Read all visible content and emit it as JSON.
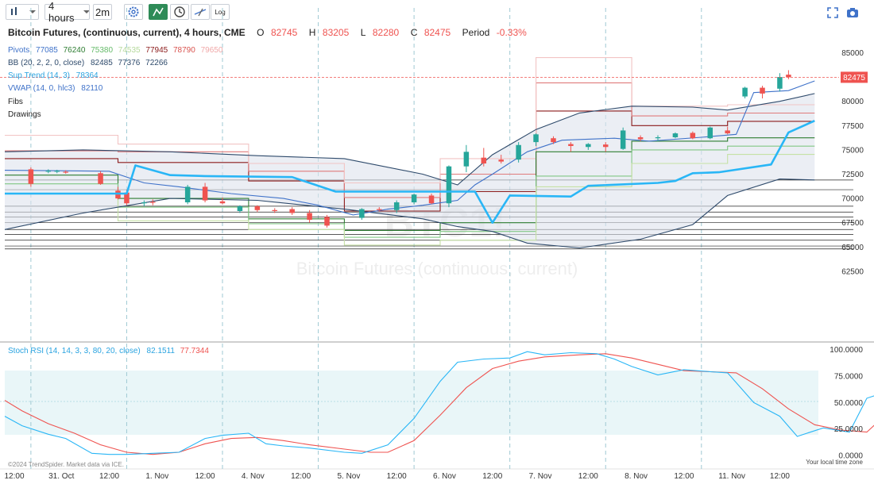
{
  "toolbar": {
    "interval": "4 hours",
    "refresh": "2m",
    "log_label": "Log"
  },
  "header": {
    "title": "Bitcoin Futures, (continuous, current), 4 hours, CME",
    "o_label": "O",
    "o_value": "82745",
    "h_label": "H",
    "h_value": "83205",
    "l_label": "L",
    "l_value": "82280",
    "c_label": "C",
    "c_value": "82475",
    "period_label": "Period",
    "period_value": "-0.33%"
  },
  "legend": {
    "pivots_label": "Pivots",
    "pivots_values": [
      "77085",
      "76240",
      "75380",
      "74535",
      "77945",
      "78790",
      "79650"
    ],
    "bb_label": "BB (20, 2, 2, 0, close)",
    "bb_values": [
      "82485",
      "77376",
      "72266"
    ],
    "st_label": "Sup.Trend (14, 3)",
    "st_value": "78364",
    "vwap_label": "VWAP (14, 0, hlc3)",
    "vwap_value": "82110",
    "fibs_label": "Fibs",
    "drawings_label": "Drawings"
  },
  "watermark": {
    "big": "BTC1!",
    "small": "Bitcoin Futures (continuous, current)"
  },
  "stoch_legend": {
    "label": "Stoch RSI (14, 14, 3, 3, 80, 20, close)",
    "k_value": "82.1511",
    "d_value": "77.7344"
  },
  "footer": {
    "copyright": "©2024 TrendSpider. Market data via ICE.",
    "tz_note": "Your local time zone"
  },
  "colors": {
    "up": "#26a69a",
    "down": "#ef5350",
    "supertrend": "#29b6f6",
    "bb": "#2e4a6b",
    "vwap": "#3f72c9",
    "r1": "#8b1a1a",
    "r2": "#e07b7b",
    "r3": "#f2c4c4",
    "s1": "#2e7d32",
    "s2": "#81c784",
    "s3": "#c5e1a5",
    "stoch_k": "#29b6f6",
    "stoch_d": "#ef5350"
  },
  "chart_data": {
    "type": "candlestick",
    "price_ticks": [
      "85000",
      "82500",
      "80000",
      "77500",
      "75000",
      "72500",
      "70000",
      "67500",
      "65000",
      "62500"
    ],
    "price_tick_values": [
      85000,
      82500,
      80000,
      77500,
      75000,
      72500,
      70000,
      67500,
      65000,
      62500
    ],
    "last_price_label": "82475",
    "last_price": 82475,
    "x_labels": [
      "12:00",
      "31. Oct",
      "12:00",
      "1. Nov",
      "12:00",
      "4. Nov",
      "12:00",
      "5. Nov",
      "12:00",
      "6. Nov",
      "12:00",
      "7. Nov",
      "12:00",
      "8. Nov",
      "12:00",
      "11. Nov",
      "12:00"
    ],
    "x_label_index": [
      -3,
      2.5,
      8,
      13.5,
      19,
      24.5,
      30,
      35.5,
      41,
      46.5,
      52,
      57.5,
      63,
      68.5,
      74,
      79.5,
      85
    ],
    "session_index": [
      -1,
      10,
      21,
      32,
      43,
      54,
      65,
      76
    ],
    "candles": [
      {
        "i": -1,
        "o": 73000,
        "h": 73200,
        "l": 71200,
        "c": 71500
      },
      {
        "i": 1,
        "o": 72850,
        "h": 73000,
        "l": 72600,
        "c": 72850
      },
      {
        "i": 2,
        "o": 72800,
        "h": 72950,
        "l": 72600,
        "c": 72850
      },
      {
        "i": 3,
        "o": 72750,
        "h": 72900,
        "l": 72550,
        "c": 72700
      },
      {
        "i": 7,
        "o": 72600,
        "h": 72800,
        "l": 71400,
        "c": 71500
      },
      {
        "i": 9,
        "o": 70800,
        "h": 71200,
        "l": 69900,
        "c": 70000
      },
      {
        "i": 10,
        "o": 70600,
        "h": 70900,
        "l": 69300,
        "c": 69500
      },
      {
        "i": 12,
        "o": 69500,
        "h": 69800,
        "l": 69200,
        "c": 69600
      },
      {
        "i": 13,
        "o": 69650,
        "h": 69900,
        "l": 69300,
        "c": 69600
      },
      {
        "i": 17,
        "o": 69600,
        "h": 71400,
        "l": 69400,
        "c": 71200
      },
      {
        "i": 19,
        "o": 71200,
        "h": 71600,
        "l": 69600,
        "c": 69800
      },
      {
        "i": 21,
        "o": 69700,
        "h": 70100,
        "l": 69400,
        "c": 69500
      },
      {
        "i": 23,
        "o": 68700,
        "h": 69300,
        "l": 68500,
        "c": 69200
      },
      {
        "i": 25,
        "o": 69200,
        "h": 69300,
        "l": 68600,
        "c": 68800
      },
      {
        "i": 27,
        "o": 68800,
        "h": 69000,
        "l": 68500,
        "c": 68700
      },
      {
        "i": 29,
        "o": 68900,
        "h": 69100,
        "l": 68300,
        "c": 68500
      },
      {
        "i": 31,
        "o": 68500,
        "h": 68800,
        "l": 67500,
        "c": 67800
      },
      {
        "i": 33,
        "o": 68100,
        "h": 68300,
        "l": 67000,
        "c": 67200
      },
      {
        "i": 37,
        "o": 68000,
        "h": 69000,
        "l": 67800,
        "c": 68900
      },
      {
        "i": 39,
        "o": 68900,
        "h": 69100,
        "l": 68700,
        "c": 68800
      },
      {
        "i": 41,
        "o": 68800,
        "h": 69800,
        "l": 68500,
        "c": 69600
      },
      {
        "i": 43,
        "o": 69600,
        "h": 70500,
        "l": 69400,
        "c": 70400
      },
      {
        "i": 45,
        "o": 70300,
        "h": 70500,
        "l": 69400,
        "c": 69500
      },
      {
        "i": 47,
        "o": 69500,
        "h": 73400,
        "l": 69100,
        "c": 73300
      },
      {
        "i": 49,
        "o": 73300,
        "h": 75500,
        "l": 72700,
        "c": 74800
      },
      {
        "i": 51,
        "o": 74200,
        "h": 75200,
        "l": 73300,
        "c": 73600
      },
      {
        "i": 53,
        "o": 74000,
        "h": 74500,
        "l": 73600,
        "c": 73800
      },
      {
        "i": 55,
        "o": 74000,
        "h": 75800,
        "l": 73700,
        "c": 75500
      },
      {
        "i": 57,
        "o": 75800,
        "h": 76700,
        "l": 75400,
        "c": 76600
      },
      {
        "i": 59,
        "o": 76200,
        "h": 76400,
        "l": 75600,
        "c": 75800
      },
      {
        "i": 61,
        "o": 75600,
        "h": 75800,
        "l": 74800,
        "c": 75400
      },
      {
        "i": 63,
        "o": 75300,
        "h": 75700,
        "l": 75000,
        "c": 75600
      },
      {
        "i": 65,
        "o": 75550,
        "h": 75800,
        "l": 74800,
        "c": 75300
      },
      {
        "i": 67,
        "o": 75100,
        "h": 77300,
        "l": 75000,
        "c": 77000
      },
      {
        "i": 69,
        "o": 76300,
        "h": 76500,
        "l": 75900,
        "c": 76100
      },
      {
        "i": 71,
        "o": 76200,
        "h": 76500,
        "l": 75900,
        "c": 76300
      },
      {
        "i": 73,
        "o": 76300,
        "h": 76800,
        "l": 76200,
        "c": 76700
      },
      {
        "i": 75,
        "o": 76750,
        "h": 76900,
        "l": 76100,
        "c": 76200
      },
      {
        "i": 77,
        "o": 76200,
        "h": 77400,
        "l": 76100,
        "c": 77300
      },
      {
        "i": 79,
        "o": 77000,
        "h": 77400,
        "l": 76600,
        "c": 76700
      },
      {
        "i": 81,
        "o": 80500,
        "h": 81500,
        "l": 80300,
        "c": 81400
      },
      {
        "i": 83,
        "o": 81400,
        "h": 81600,
        "l": 80300,
        "c": 80800
      },
      {
        "i": 85,
        "o": 81300,
        "h": 82900,
        "l": 81000,
        "c": 82500
      },
      {
        "i": 86,
        "o": 82745,
        "h": 83205,
        "l": 82280,
        "c": 82475
      }
    ],
    "supertrend": [
      [
        -4,
        70500
      ],
      [
        10,
        70500
      ],
      [
        11,
        73400
      ],
      [
        15,
        72400
      ],
      [
        19,
        72300
      ],
      [
        29,
        72200
      ],
      [
        34,
        70700
      ],
      [
        50,
        70700
      ],
      [
        52,
        67500
      ],
      [
        54,
        70300
      ],
      [
        61,
        70200
      ],
      [
        63,
        71300
      ],
      [
        71,
        71600
      ],
      [
        73,
        71800
      ],
      [
        75,
        72600
      ],
      [
        78,
        72700
      ],
      [
        84,
        73500
      ],
      [
        86,
        76800
      ],
      [
        89,
        78000
      ]
    ],
    "bb_upper": [
      [
        -4,
        74800
      ],
      [
        5,
        75000
      ],
      [
        15,
        74800
      ],
      [
        25,
        74400
      ],
      [
        35,
        74100
      ],
      [
        44,
        72500
      ],
      [
        48,
        71400
      ],
      [
        52,
        74500
      ],
      [
        57,
        77100
      ],
      [
        62,
        78800
      ],
      [
        68,
        79500
      ],
      [
        75,
        79400
      ],
      [
        79,
        79100
      ],
      [
        85,
        80000
      ],
      [
        89,
        80800
      ]
    ],
    "bb_lower": [
      [
        -4,
        66800
      ],
      [
        5,
        68500
      ],
      [
        15,
        70000
      ],
      [
        25,
        69800
      ],
      [
        35,
        68900
      ],
      [
        44,
        67900
      ],
      [
        48,
        67100
      ],
      [
        52,
        66600
      ],
      [
        56,
        65400
      ],
      [
        62,
        64900
      ],
      [
        69,
        65800
      ],
      [
        75,
        67300
      ],
      [
        79,
        70300
      ],
      [
        85,
        72000
      ],
      [
        89,
        71900
      ]
    ],
    "vwap": [
      [
        -4,
        72900
      ],
      [
        8,
        72800
      ],
      [
        12,
        71600
      ],
      [
        16,
        71200
      ],
      [
        22,
        70500
      ],
      [
        28,
        70000
      ],
      [
        32,
        69300
      ],
      [
        36,
        68300
      ],
      [
        40,
        68900
      ],
      [
        44,
        69300
      ],
      [
        48,
        69800
      ],
      [
        50,
        71400
      ],
      [
        52,
        72500
      ],
      [
        56,
        74800
      ],
      [
        60,
        76000
      ],
      [
        66,
        76200
      ],
      [
        70,
        75900
      ],
      [
        76,
        76300
      ],
      [
        80,
        76600
      ],
      [
        82,
        80900
      ],
      [
        86,
        81100
      ],
      [
        89,
        82100
      ]
    ],
    "pivots": {
      "r1": [
        [
          -4,
          74100
        ],
        [
          9,
          74100
        ],
        [
          9,
          73700
        ],
        [
          24,
          73700
        ],
        [
          24,
          71800
        ],
        [
          35,
          71800
        ],
        [
          35,
          68700
        ],
        [
          46,
          68700
        ],
        [
          46,
          70700
        ],
        [
          57,
          70700
        ],
        [
          57,
          79000
        ],
        [
          68,
          79000
        ],
        [
          68,
          77500
        ],
        [
          79,
          77500
        ],
        [
          79,
          77945
        ],
        [
          89,
          77945
        ]
      ],
      "r2": [
        [
          -4,
          74900
        ],
        [
          9,
          74900
        ],
        [
          9,
          74800
        ],
        [
          24,
          74800
        ],
        [
          24,
          72800
        ],
        [
          35,
          72800
        ],
        [
          35,
          70100
        ],
        [
          46,
          70100
        ],
        [
          46,
          72500
        ],
        [
          57,
          72500
        ],
        [
          57,
          81900
        ],
        [
          68,
          81900
        ],
        [
          68,
          78500
        ],
        [
          79,
          78500
        ],
        [
          79,
          78790
        ],
        [
          89,
          78790
        ]
      ],
      "r3": [
        [
          -4,
          76500
        ],
        [
          9,
          76500
        ],
        [
          9,
          75600
        ],
        [
          24,
          75600
        ],
        [
          24,
          73600
        ],
        [
          35,
          73600
        ],
        [
          35,
          71600
        ],
        [
          46,
          71600
        ],
        [
          46,
          74100
        ],
        [
          57,
          74100
        ],
        [
          57,
          84500
        ],
        [
          68,
          84500
        ],
        [
          68,
          79500
        ],
        [
          79,
          79500
        ],
        [
          79,
          79650
        ],
        [
          89,
          79650
        ]
      ],
      "s1": [
        [
          -4,
          72400
        ],
        [
          9,
          72400
        ],
        [
          9,
          70000
        ],
        [
          24,
          70000
        ],
        [
          24,
          67900
        ],
        [
          35,
          67900
        ],
        [
          35,
          66700
        ],
        [
          46,
          66700
        ],
        [
          46,
          67500
        ],
        [
          57,
          67500
        ],
        [
          57,
          74800
        ],
        [
          68,
          74800
        ],
        [
          68,
          75900
        ],
        [
          79,
          75900
        ],
        [
          79,
          76240
        ],
        [
          89,
          76240
        ]
      ],
      "s2": [
        [
          -4,
          71500
        ],
        [
          9,
          71500
        ],
        [
          9,
          69100
        ],
        [
          24,
          69100
        ],
        [
          24,
          67400
        ],
        [
          35,
          67400
        ],
        [
          35,
          66000
        ],
        [
          46,
          66000
        ],
        [
          46,
          66600
        ],
        [
          57,
          66600
        ],
        [
          57,
          72300
        ],
        [
          68,
          72300
        ],
        [
          68,
          75000
        ],
        [
          79,
          75000
        ],
        [
          79,
          75380
        ],
        [
          89,
          75380
        ]
      ],
      "s3": [
        [
          -4,
          70500
        ],
        [
          9,
          70500
        ],
        [
          9,
          67700
        ],
        [
          24,
          67700
        ],
        [
          24,
          66800
        ],
        [
          35,
          66800
        ],
        [
          35,
          65200
        ],
        [
          46,
          65200
        ],
        [
          46,
          65700
        ],
        [
          57,
          65700
        ],
        [
          57,
          71200
        ],
        [
          68,
          71200
        ],
        [
          68,
          73600
        ],
        [
          79,
          73600
        ],
        [
          79,
          74535
        ],
        [
          89,
          74535
        ]
      ]
    },
    "fib_levels": [
      71900,
      70900,
      69200,
      68600,
      68100,
      67500,
      66800,
      66300,
      65700,
      65100,
      64800
    ],
    "stoch_ticks": [
      "100.0000",
      "75.0000",
      "50.0000",
      "25.0000",
      "0.0000"
    ],
    "stoch_tick_values": [
      100,
      75,
      50,
      25,
      0
    ],
    "stoch_band": [
      20,
      80
    ],
    "stoch_k": [
      [
        -4,
        37
      ],
      [
        -2,
        28
      ],
      [
        1,
        20
      ],
      [
        3,
        16
      ],
      [
        6,
        2
      ],
      [
        8,
        1
      ],
      [
        10,
        1
      ],
      [
        13,
        2
      ],
      [
        16,
        3
      ],
      [
        19,
        16
      ],
      [
        21,
        19
      ],
      [
        24,
        21
      ],
      [
        26,
        11
      ],
      [
        28,
        9
      ],
      [
        31,
        7
      ],
      [
        35,
        3
      ],
      [
        37,
        2
      ],
      [
        40,
        10
      ],
      [
        43,
        35
      ],
      [
        46,
        70
      ],
      [
        48,
        88
      ],
      [
        51,
        91
      ],
      [
        54,
        92
      ],
      [
        56,
        98
      ],
      [
        58,
        95
      ],
      [
        61,
        97
      ],
      [
        64,
        96
      ],
      [
        66,
        91
      ],
      [
        68,
        84
      ],
      [
        71,
        76
      ],
      [
        74,
        81
      ],
      [
        77,
        79
      ],
      [
        79,
        78
      ],
      [
        82,
        50
      ],
      [
        85,
        37
      ],
      [
        87,
        18
      ],
      [
        90,
        26
      ],
      [
        93,
        22
      ],
      [
        95,
        54
      ],
      [
        98,
        62
      ],
      [
        100,
        88
      ],
      [
        102,
        82
      ]
    ],
    "stoch_d": [
      [
        -4,
        52
      ],
      [
        -2,
        42
      ],
      [
        1,
        30
      ],
      [
        4,
        21
      ],
      [
        7,
        10
      ],
      [
        10,
        3
      ],
      [
        13,
        1
      ],
      [
        16,
        3
      ],
      [
        19,
        11
      ],
      [
        22,
        16
      ],
      [
        25,
        17
      ],
      [
        28,
        14
      ],
      [
        31,
        10
      ],
      [
        35,
        6
      ],
      [
        38,
        3
      ],
      [
        40,
        3
      ],
      [
        43,
        14
      ],
      [
        46,
        38
      ],
      [
        49,
        64
      ],
      [
        52,
        82
      ],
      [
        55,
        89
      ],
      [
        58,
        93
      ],
      [
        62,
        95
      ],
      [
        65,
        96
      ],
      [
        68,
        92
      ],
      [
        71,
        86
      ],
      [
        74,
        80
      ],
      [
        77,
        79
      ],
      [
        80,
        78
      ],
      [
        83,
        63
      ],
      [
        86,
        44
      ],
      [
        89,
        29
      ],
      [
        92,
        24
      ],
      [
        95,
        22
      ],
      [
        98,
        45
      ],
      [
        100,
        66
      ],
      [
        102,
        78
      ]
    ],
    "ylim": [
      61000,
      88500
    ],
    "stoch_ylim": [
      0,
      100
    ]
  }
}
